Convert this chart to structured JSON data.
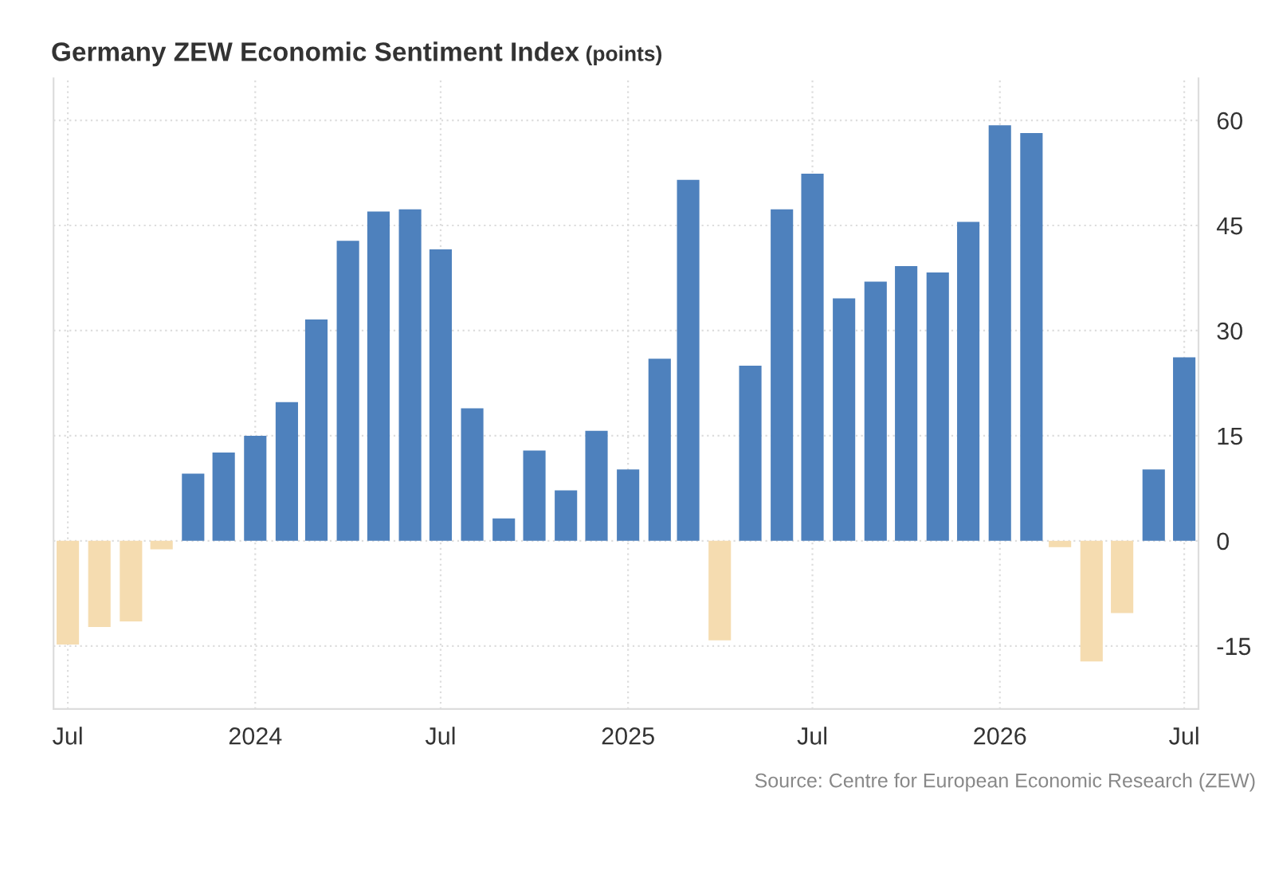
{
  "chart_data": {
    "type": "bar",
    "title": "Germany ZEW Economic Sentiment Index",
    "subtitle": "(points)",
    "x": [
      "2023-07",
      "2023-08",
      "2023-09",
      "2023-10",
      "2023-11",
      "2023-12",
      "2024-01",
      "2024-02",
      "2024-03",
      "2024-04",
      "2024-05",
      "2024-06",
      "2024-07",
      "2024-08",
      "2024-09",
      "2024-10",
      "2024-11",
      "2024-12",
      "2025-01",
      "2025-02",
      "2025-03",
      "2025-04",
      "2025-05",
      "2025-06",
      "2025-07",
      "2025-08",
      "2025-09",
      "2025-10",
      "2025-11",
      "2025-12",
      "2026-01",
      "2026-02",
      "2026-03",
      "2026-04",
      "2026-05",
      "2026-06",
      "2026-07"
    ],
    "values": [
      -14.8,
      -12.3,
      -11.5,
      -1.2,
      9.6,
      12.6,
      15.0,
      19.8,
      31.6,
      42.8,
      47.0,
      47.3,
      41.6,
      18.9,
      3.2,
      12.9,
      7.2,
      15.7,
      10.2,
      26.0,
      51.5,
      -14.2,
      25.0,
      47.3,
      52.4,
      34.6,
      37.0,
      39.2,
      38.3,
      45.5,
      59.3,
      58.2,
      -0.9,
      -17.2,
      -10.3,
      10.2,
      26.2
    ],
    "colors": [
      "#f5dcb0",
      "#f5dcb0",
      "#f5dcb0",
      "#f5dcb0",
      "#4e81bd",
      "#4e81bd",
      "#4e81bd",
      "#4e81bd",
      "#4e81bd",
      "#4e81bd",
      "#4e81bd",
      "#4e81bd",
      "#4e81bd",
      "#4e81bd",
      "#4e81bd",
      "#4e81bd",
      "#4e81bd",
      "#4e81bd",
      "#4e81bd",
      "#4e81bd",
      "#4e81bd",
      "#f5dcb0",
      "#4e81bd",
      "#4e81bd",
      "#4e81bd",
      "#4e81bd",
      "#4e81bd",
      "#4e81bd",
      "#4e81bd",
      "#4e81bd",
      "#4e81bd",
      "#4e81bd",
      "#f5dcb0",
      "#f5dcb0",
      "#f5dcb0",
      "#4e81bd",
      "#4e81bd"
    ],
    "xlim": [
      "2023-06-17",
      "2026-07-15"
    ],
    "xticks": [
      {
        "value": "2023-07",
        "label": "Jul"
      },
      {
        "value": "2024-01",
        "label": "2024"
      },
      {
        "value": "2024-07",
        "label": "Jul"
      },
      {
        "value": "2025-01",
        "label": "2025"
      },
      {
        "value": "2025-07",
        "label": "Jul"
      },
      {
        "value": "2026-01",
        "label": "2026"
      },
      {
        "value": "2026-07",
        "label": "Jul"
      }
    ],
    "ylim": [
      -24,
      66
    ],
    "yticks": [
      -15,
      0,
      15,
      30,
      45,
      60
    ],
    "grid": true,
    "annotations": [
      "Source: Centre for European Economic Research (ZEW)"
    ]
  }
}
